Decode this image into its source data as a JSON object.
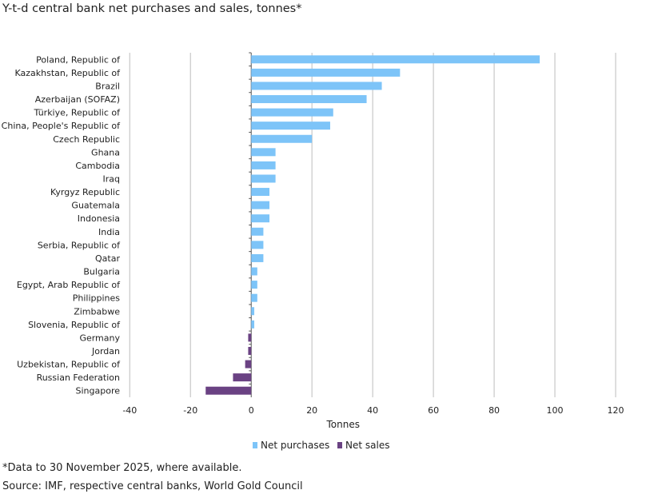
{
  "title": "Y-t-d central bank net purchases and sales, tonnes*",
  "footnote": "*Data to 30 November 2025, where available.",
  "source": "Source: IMF, respective central banks, World Gold Council",
  "chart_data": {
    "type": "bar",
    "orientation": "horizontal",
    "xlabel": "Tonnes",
    "xlim": [
      -40,
      120
    ],
    "xticks": [
      -40,
      -20,
      0,
      20,
      40,
      60,
      80,
      100,
      120
    ],
    "grid": true,
    "legend_placement": "bottom",
    "legend": [
      {
        "name": "Net purchases",
        "color": "#7DC4F8"
      },
      {
        "name": "Net sales",
        "color": "#6A4283"
      }
    ],
    "categories": [
      "Poland, Republic of",
      "Kazakhstan, Republic of",
      "Brazil",
      "Azerbaijan (SOFAZ)",
      "Türkiye, Republic of",
      "China, People's Republic of",
      "Czech Republic",
      "Ghana",
      "Cambodia",
      "Iraq",
      "Kyrgyz Republic",
      "Guatemala",
      "Indonesia",
      "India",
      "Serbia, Republic of",
      "Qatar",
      "Bulgaria",
      "Egypt, Arab Republic of",
      "Philippines",
      "Zimbabwe",
      "Slovenia, Republic of",
      "Germany",
      "Jordan",
      "Uzbekistan, Republic of",
      "Russian Federation",
      "Singapore"
    ],
    "values": [
      95,
      49,
      43,
      38,
      27,
      26,
      20,
      8,
      8,
      8,
      6,
      6,
      6,
      4,
      4,
      4,
      2,
      2,
      2,
      1,
      1,
      -1,
      -1,
      -2,
      -6,
      -15
    ]
  }
}
